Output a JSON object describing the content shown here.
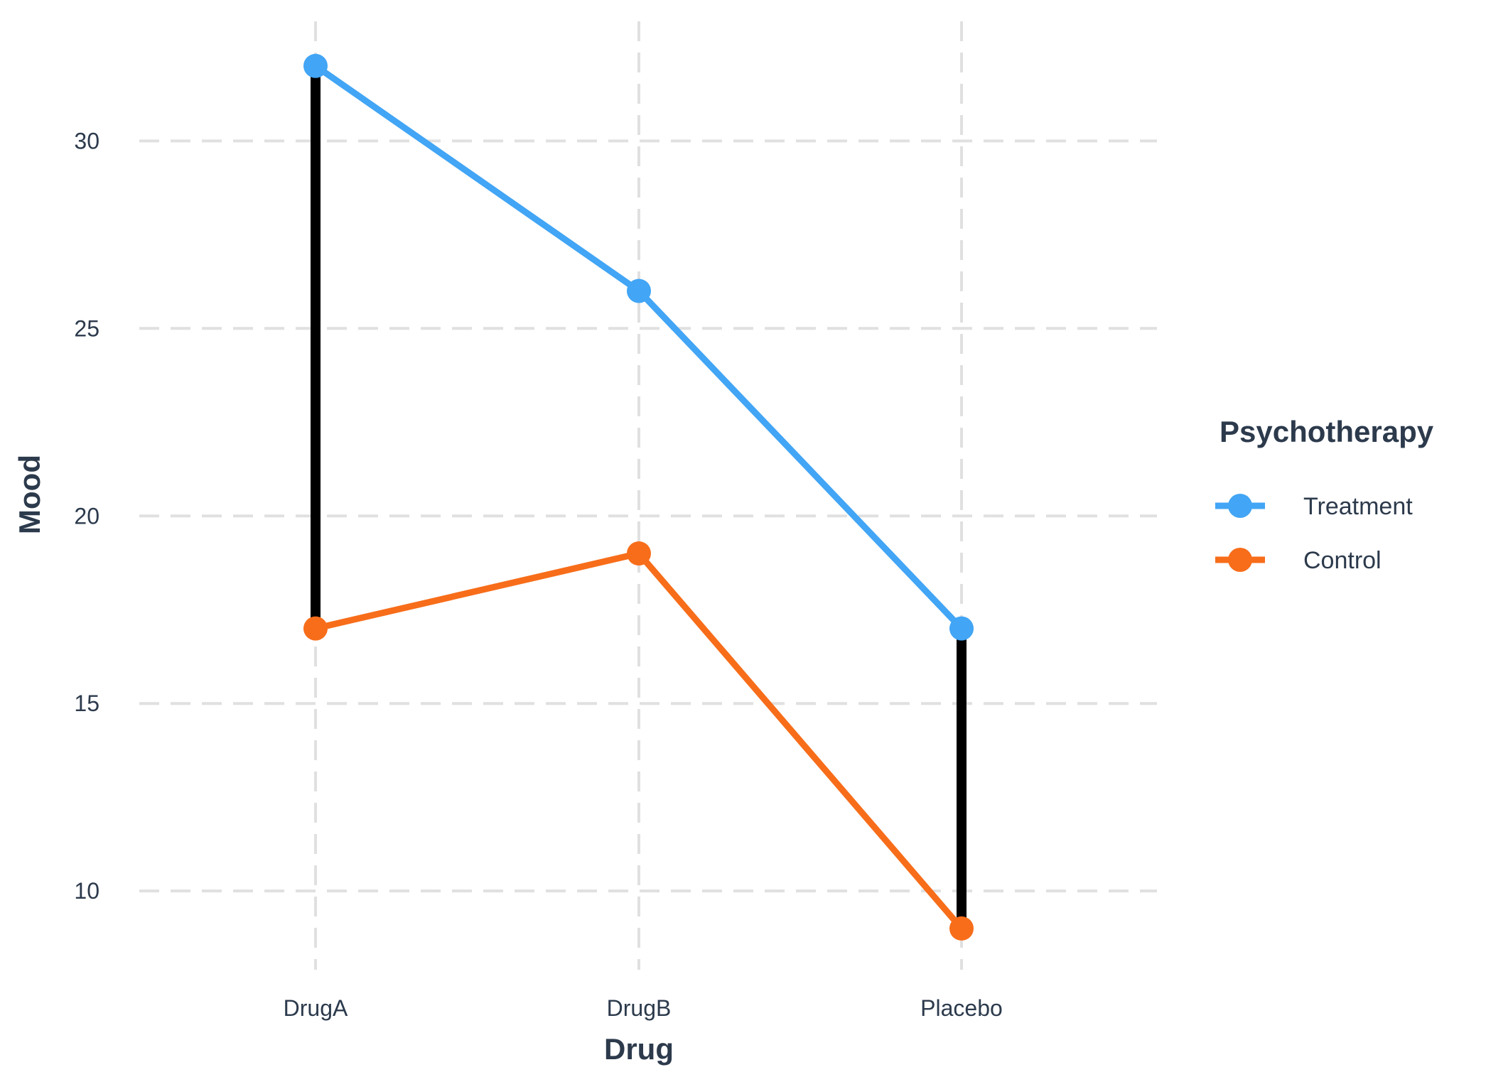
{
  "chart_data": {
    "type": "line",
    "title": "",
    "xlabel": "Drug",
    "ylabel": "Mood",
    "categories": [
      "DrugA",
      "DrugB",
      "Placebo"
    ],
    "ylim": [
      7.9,
      33.0
    ],
    "yticks": [
      10,
      15,
      20,
      25,
      30
    ],
    "grid": true,
    "grid_style": "dashed",
    "series": [
      {
        "name": "Treatment",
        "color": "#42a5f5",
        "values": [
          32,
          26,
          17
        ]
      },
      {
        "name": "Control",
        "color": "#f76d1a",
        "values": [
          17,
          19,
          9
        ]
      }
    ],
    "segments": [
      {
        "category": "DrugA",
        "from": 17,
        "to": 32,
        "color": "#000000"
      },
      {
        "category": "Placebo",
        "from": 9,
        "to": 17,
        "color": "#000000"
      }
    ],
    "legend": {
      "title": "Psychotherapy",
      "position": "right"
    }
  }
}
